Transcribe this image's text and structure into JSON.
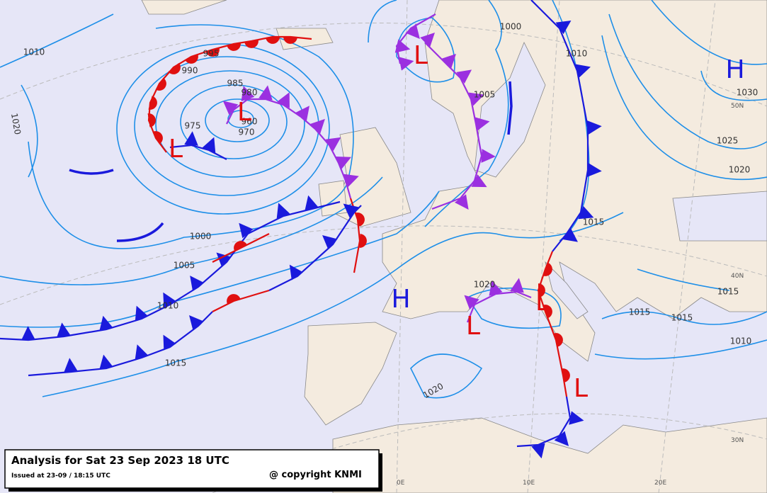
{
  "caption": {
    "title": "Analysis for Sat 23 Sep 2023 18 UTC",
    "issued": "Issued at 23-09 / 18:15 UTC",
    "copyright": "@ copyright KNMI"
  },
  "isobar_labels": [
    "1010",
    "1020",
    "995",
    "990",
    "985",
    "980",
    "975",
    "970",
    "960",
    "1000",
    "1005",
    "1010",
    "1015",
    "1000",
    "1005",
    "1010",
    "1025",
    "1020",
    "1030",
    "1015",
    "1020",
    "1015",
    "1015",
    "1015",
    "1010",
    "1020"
  ],
  "centers": [
    "H",
    "H",
    "L",
    "L",
    "L",
    "L",
    "L",
    "L"
  ],
  "grid_labels": [
    "50N",
    "40N",
    "30N",
    "0E",
    "10E",
    "20E"
  ]
}
